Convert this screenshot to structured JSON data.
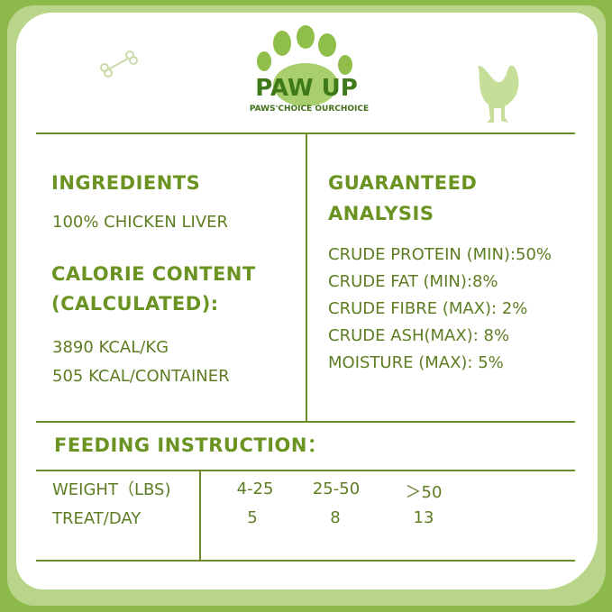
{
  "brand": {
    "name": "PAW UP",
    "tagline": "PAWS'CHOICE  OURCHOICE"
  },
  "ingredients": {
    "heading": "INGREDIENTS",
    "text": "100% CHICKEN LIVER"
  },
  "calorie": {
    "heading1": "CALORIE CONTENT",
    "heading2": "(CALCULATED):",
    "line1": "3890 KCAL/KG",
    "line2": "505 KCAL/CONTAINER"
  },
  "analysis": {
    "heading1": "GUARANTEED",
    "heading2": "ANALYSIS",
    "items": [
      "CRUDE PROTEIN (MIN):50%",
      "CRUDE FAT (MIN):8%",
      "CRUDE FIBRE (MAX): 2%",
      "CRUDE ASH(MAX): 8%",
      "MOISTURE (MAX): 5%"
    ]
  },
  "feeding": {
    "heading": "FEEDING INSTRUCTION：",
    "row_labels": [
      "WEIGHT（LBS)",
      "TREAT/DAY"
    ],
    "weights": [
      "4-25",
      "25-50",
      "＞50"
    ],
    "treats": [
      "5",
      "8",
      "13"
    ]
  },
  "colors": {
    "background": "#8db84a",
    "heading": "#6a9322",
    "text": "#5d7d22"
  }
}
